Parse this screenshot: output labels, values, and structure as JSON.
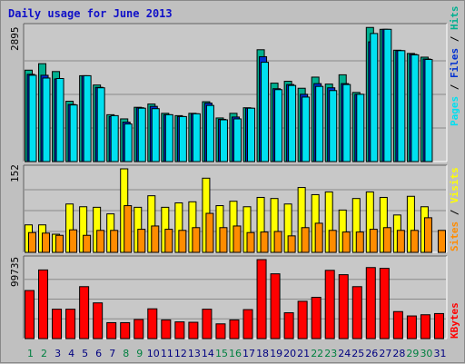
{
  "title": "Daily usage for June 2013",
  "colors": {
    "hits": "#00b090",
    "files": "#0030d0",
    "pages": "#00e0f0",
    "visits": "#ffff00",
    "sites": "#ff8c00",
    "kbytes": "#ff0000",
    "panel_bg": "#c8c8c8",
    "weekend_label": "#008040",
    "weekday_label": "#000080"
  },
  "chart_data": [
    {
      "type": "bar",
      "title": "Daily usage for June 2013",
      "ymax_label": "2895",
      "ymax": 2895,
      "legend": [
        "Pages",
        "Files",
        "Hits"
      ],
      "categories": [
        "1",
        "2",
        "3",
        "4",
        "5",
        "6",
        "7",
        "8",
        "9",
        "10",
        "11",
        "12",
        "13",
        "14",
        "15",
        "16",
        "17",
        "18",
        "19",
        "20",
        "21",
        "22",
        "23",
        "24",
        "25",
        "26",
        "27",
        "28",
        "29",
        "30",
        "31"
      ],
      "weekend_days": [
        "1",
        "2",
        "8",
        "9",
        "15",
        "16",
        "22",
        "23",
        "29",
        "30"
      ],
      "series": [
        {
          "name": "Hits",
          "values": [
            1970,
            2110,
            1940,
            1300,
            1850,
            1650,
            1010,
            920,
            1170,
            1240,
            1040,
            990,
            1040,
            1290,
            940,
            1040,
            1160,
            2410,
            1690,
            1730,
            1580,
            1820,
            1670,
            1870,
            1490,
            2890,
            2850,
            2400,
            2330,
            2250,
            0
          ]
        },
        {
          "name": "Files",
          "values": [
            1880,
            1860,
            1780,
            1230,
            1850,
            1600,
            970,
            850,
            1160,
            1190,
            1010,
            970,
            1030,
            1260,
            910,
            960,
            1150,
            2260,
            1570,
            1660,
            1450,
            1680,
            1590,
            1680,
            1450,
            2580,
            2850,
            2390,
            2310,
            2210,
            0
          ]
        },
        {
          "name": "Pages",
          "values": [
            1860,
            1800,
            1790,
            1220,
            1850,
            1590,
            990,
            810,
            1150,
            1140,
            1010,
            970,
            1030,
            1210,
            900,
            920,
            1150,
            2140,
            1550,
            1640,
            1390,
            1620,
            1530,
            1660,
            1450,
            2760,
            2850,
            2390,
            2300,
            2200,
            0
          ]
        }
      ]
    },
    {
      "type": "bar",
      "ymax_label": "152",
      "ymax": 152,
      "legend": [
        "Sites",
        "Visits"
      ],
      "categories": [
        "1",
        "2",
        "3",
        "4",
        "5",
        "6",
        "7",
        "8",
        "9",
        "10",
        "11",
        "12",
        "13",
        "14",
        "15",
        "16",
        "17",
        "18",
        "19",
        "20",
        "21",
        "22",
        "23",
        "24",
        "25",
        "26",
        "27",
        "28",
        "29",
        "30",
        "31"
      ],
      "series": [
        {
          "name": "Visits",
          "values": [
            50,
            50,
            33,
            88,
            83,
            82,
            70,
            152,
            82,
            103,
            82,
            90,
            92,
            135,
            85,
            93,
            83,
            100,
            98,
            88,
            118,
            105,
            110,
            77,
            98,
            110,
            100,
            68,
            102,
            83,
            0
          ]
        },
        {
          "name": "Sites",
          "values": [
            36,
            35,
            31,
            41,
            31,
            40,
            40,
            85,
            42,
            48,
            42,
            40,
            45,
            71,
            45,
            48,
            36,
            37,
            38,
            30,
            45,
            53,
            40,
            37,
            37,
            42,
            45,
            40,
            40,
            63,
            40
          ]
        }
      ]
    },
    {
      "type": "bar",
      "ymax_label": "99735",
      "ymax": 99735,
      "legend": [
        "KBytes"
      ],
      "categories": [
        "1",
        "2",
        "3",
        "4",
        "5",
        "6",
        "7",
        "8",
        "9",
        "10",
        "11",
        "12",
        "13",
        "14",
        "15",
        "16",
        "17",
        "18",
        "19",
        "20",
        "21",
        "22",
        "23",
        "24",
        "25",
        "26",
        "27",
        "28",
        "29",
        "30",
        "31"
      ],
      "series": [
        {
          "name": "KBytes",
          "values": [
            60700,
            86700,
            37100,
            37100,
            65600,
            45100,
            20100,
            20100,
            24100,
            37600,
            23600,
            21100,
            20600,
            37100,
            18600,
            23600,
            36600,
            100200,
            81800,
            32600,
            47100,
            52100,
            86200,
            80700,
            65600,
            89700,
            88700,
            34100,
            28600,
            30100,
            31600
          ]
        }
      ]
    }
  ]
}
